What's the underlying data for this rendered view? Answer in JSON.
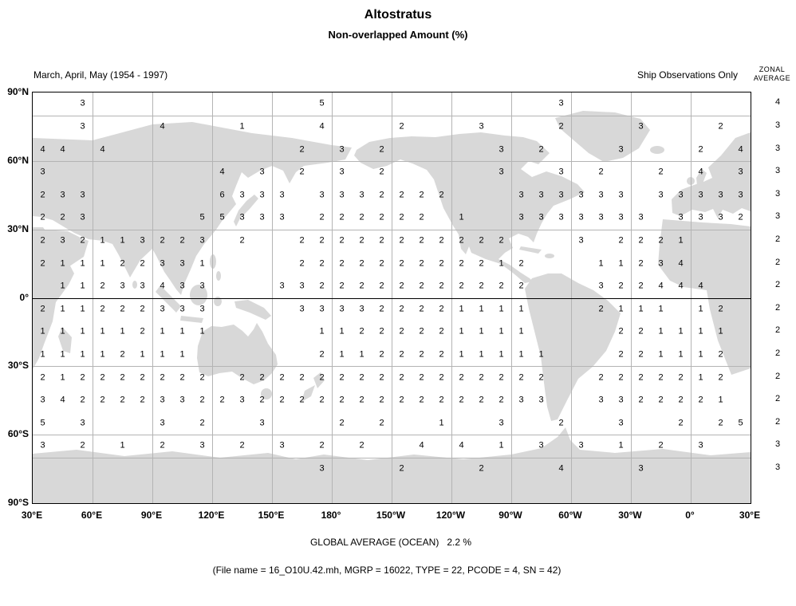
{
  "title": "Altostratus",
  "subtitle": "Non-overlapped Amount (%)",
  "season_label": "March, April, May (1954 - 1997)",
  "source_label": "Ship Observations Only",
  "zonal_header": {
    "line1": "ZONAL",
    "line2": "AVERAGE"
  },
  "footer": {
    "global_average": "GLOBAL AVERAGE (OCEAN)   2.2 %",
    "file_info": "(File name = 16_O10U.42.mh, MGRP = 16022, TYPE = 22, PCODE = 4, SN = 42)"
  },
  "axes": {
    "lon_ticks": [
      "30°E",
      "60°E",
      "90°E",
      "120°E",
      "150°E",
      "180°",
      "150°W",
      "120°W",
      "90°W",
      "60°W",
      "30°W",
      "0°",
      "30°E"
    ],
    "lat_ticks": [
      "90°N",
      "60°N",
      "30°N",
      "0°",
      "30°S",
      "60°S",
      "90°S"
    ]
  },
  "colors": {
    "land": "#d8d8d8",
    "grid_line": "#b4b4b4",
    "equator_line": "#000000",
    "text": "#000000"
  },
  "chart_data": {
    "type": "heatmap",
    "title": "Altostratus — Non-overlapped Amount (%), ship observations, MAM 1954-1997",
    "projection": "equirectangular, longitudes 30E eastward around to 30E",
    "lon_start_deg_east": 30,
    "cell_size_deg": 10,
    "latitude_band_centers": [
      "85N",
      "75N",
      "65N",
      "55N",
      "45N",
      "35N",
      "25N",
      "15N",
      "5N",
      "5S",
      "15S",
      "25S",
      "35S",
      "45S",
      "55S",
      "65S",
      "75S"
    ],
    "zonal_averages": [
      4,
      3,
      3,
      3,
      3,
      3,
      2,
      2,
      2,
      2,
      2,
      2,
      2,
      2,
      2,
      3,
      3
    ],
    "global_average_ocean_pct": 2.2,
    "grid": [
      [
        "",
        "",
        "3",
        "",
        "",
        "",
        "",
        "",
        "",
        "",
        "",
        "",
        "",
        "",
        "5",
        "",
        "",
        "",
        "",
        "",
        "",
        "",
        "",
        "",
        "",
        "",
        "3",
        "",
        "",
        "",
        "",
        "",
        "",
        "",
        "",
        ""
      ],
      [
        "",
        "",
        "3",
        "",
        "",
        "",
        "4",
        "",
        "",
        "",
        "1",
        "",
        "",
        "",
        "4",
        "",
        "",
        "",
        "2",
        "",
        "",
        "",
        "3",
        "",
        "",
        "",
        "2",
        "",
        "",
        "",
        "3",
        "",
        "",
        "",
        "2",
        ""
      ],
      [
        "4",
        "4",
        "",
        "4",
        "",
        "",
        "",
        "",
        "",
        "",
        "",
        "",
        "",
        "2",
        "",
        "3",
        "",
        "2",
        "",
        "",
        "",
        "",
        "",
        "3",
        "",
        "2",
        "",
        "",
        "",
        "3",
        "",
        "",
        "",
        "2",
        "",
        "4"
      ],
      [
        "3",
        "",
        "",
        "",
        "",
        "",
        "",
        "",
        "",
        "4",
        "",
        "3",
        "",
        "2",
        "",
        "3",
        "",
        "2",
        "",
        "",
        "",
        "",
        "",
        "3",
        "",
        "",
        "3",
        "",
        "2",
        "",
        "",
        "2",
        "",
        "4",
        "",
        "3"
      ],
      [
        "2",
        "3",
        "3",
        "",
        "",
        "",
        "",
        "",
        "",
        "6",
        "3",
        "3",
        "3",
        "",
        "3",
        "3",
        "3",
        "2",
        "2",
        "2",
        "2",
        "",
        "",
        "",
        "3",
        "3",
        "3",
        "3",
        "3",
        "3",
        "",
        "3",
        "3",
        "3",
        "3",
        "3"
      ],
      [
        "2",
        "2",
        "3",
        "",
        "",
        "",
        "",
        "",
        "5",
        "5",
        "3",
        "3",
        "3",
        "",
        "2",
        "2",
        "2",
        "2",
        "2",
        "2",
        "",
        "1",
        "",
        "",
        "3",
        "3",
        "3",
        "3",
        "3",
        "3",
        "3",
        "",
        "3",
        "3",
        "3",
        "2"
      ],
      [
        "2",
        "3",
        "2",
        "1",
        "1",
        "3",
        "2",
        "2",
        "3",
        "",
        "2",
        "",
        "",
        "2",
        "2",
        "2",
        "2",
        "2",
        "2",
        "2",
        "2",
        "2",
        "2",
        "2",
        "",
        "",
        "",
        "3",
        "",
        "2",
        "2",
        "2",
        "1",
        "",
        "",
        ""
      ],
      [
        "2",
        "1",
        "1",
        "1",
        "2",
        "2",
        "3",
        "3",
        "1",
        "",
        "",
        "",
        "",
        "2",
        "2",
        "2",
        "2",
        "2",
        "2",
        "2",
        "2",
        "2",
        "2",
        "1",
        "2",
        "",
        "",
        "",
        "1",
        "1",
        "2",
        "3",
        "4",
        "",
        "",
        ""
      ],
      [
        "",
        "1",
        "1",
        "2",
        "3",
        "3",
        "4",
        "3",
        "3",
        "",
        "",
        "",
        "3",
        "3",
        "2",
        "2",
        "2",
        "2",
        "2",
        "2",
        "2",
        "2",
        "2",
        "2",
        "2",
        "",
        "",
        "",
        "3",
        "2",
        "2",
        "4",
        "4",
        "4",
        "",
        ""
      ],
      [
        "2",
        "1",
        "1",
        "2",
        "2",
        "2",
        "3",
        "3",
        "3",
        "",
        "",
        "",
        "",
        "3",
        "3",
        "3",
        "3",
        "2",
        "2",
        "2",
        "2",
        "1",
        "1",
        "1",
        "1",
        "",
        "",
        "",
        "2",
        "1",
        "1",
        "1",
        "",
        "1",
        "2",
        ""
      ],
      [
        "1",
        "1",
        "1",
        "1",
        "1",
        "2",
        "1",
        "1",
        "1",
        "",
        "",
        "",
        "",
        "",
        "1",
        "1",
        "2",
        "2",
        "2",
        "2",
        "2",
        "1",
        "1",
        "1",
        "1",
        "",
        "",
        "",
        "",
        "2",
        "2",
        "1",
        "1",
        "1",
        "1",
        ""
      ],
      [
        "1",
        "1",
        "1",
        "1",
        "2",
        "1",
        "1",
        "1",
        "",
        "",
        "",
        "",
        "",
        "",
        "2",
        "1",
        "1",
        "2",
        "2",
        "2",
        "2",
        "1",
        "1",
        "1",
        "1",
        "1",
        "",
        "",
        "",
        "2",
        "2",
        "1",
        "1",
        "1",
        "2",
        ""
      ],
      [
        "2",
        "1",
        "2",
        "2",
        "2",
        "2",
        "2",
        "2",
        "2",
        "",
        "2",
        "2",
        "2",
        "2",
        "2",
        "2",
        "2",
        "2",
        "2",
        "2",
        "2",
        "2",
        "2",
        "2",
        "2",
        "2",
        "",
        "",
        "2",
        "2",
        "2",
        "2",
        "2",
        "1",
        "2",
        ""
      ],
      [
        "3",
        "4",
        "2",
        "2",
        "2",
        "2",
        "3",
        "3",
        "2",
        "2",
        "3",
        "2",
        "2",
        "2",
        "2",
        "2",
        "2",
        "2",
        "2",
        "2",
        "2",
        "2",
        "2",
        "2",
        "3",
        "3",
        "",
        "",
        "3",
        "3",
        "2",
        "2",
        "2",
        "2",
        "1",
        ""
      ],
      [
        "5",
        "",
        "3",
        "",
        "",
        "",
        "3",
        "",
        "2",
        "",
        "",
        "3",
        "",
        "",
        "",
        "2",
        "",
        "2",
        "",
        "",
        "1",
        "",
        "",
        "3",
        "",
        "",
        "2",
        "",
        "",
        "3",
        "",
        "",
        "2",
        "",
        "2",
        "5"
      ],
      [
        "3",
        "",
        "2",
        "",
        "1",
        "",
        "2",
        "",
        "3",
        "",
        "2",
        "",
        "3",
        "",
        "2",
        "",
        "2",
        "",
        "",
        "4",
        "",
        "4",
        "",
        "1",
        "",
        "3",
        "",
        "3",
        "",
        "1",
        "",
        "2",
        "",
        "3",
        "",
        ""
      ],
      [
        "",
        "",
        "",
        "",
        "",
        "",
        "",
        "",
        "",
        "",
        "",
        "",
        "",
        "",
        "3",
        "",
        "",
        "",
        "2",
        "",
        "",
        "",
        "2",
        "",
        "",
        "",
        "4",
        "",
        "",
        "",
        "3",
        "",
        "",
        "",
        "",
        ""
      ]
    ]
  }
}
